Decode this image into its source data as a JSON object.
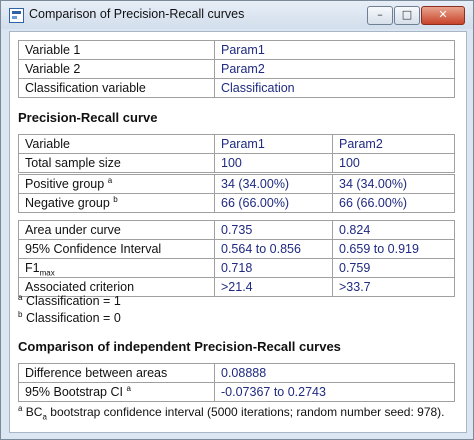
{
  "window": {
    "title": "Comparison of Precision-Recall curves",
    "minimize_glyph": "–",
    "maximize_glyph": "□",
    "close_glyph": "✕"
  },
  "variables": {
    "rows": [
      {
        "label": "Variable 1",
        "value": "Param1"
      },
      {
        "label": "Variable 2",
        "value": "Param2"
      },
      {
        "label": "Classification variable",
        "value": "Classification"
      }
    ]
  },
  "pr_curve": {
    "heading": "Precision-Recall curve",
    "header": {
      "label": "Variable",
      "col1": "Param1",
      "col2": "Param2"
    },
    "sample": {
      "label": "Total sample size",
      "col1": "100",
      "col2": "100"
    },
    "positive": {
      "label": "Positive group",
      "sup": "a",
      "col1": "34 (34.00%)",
      "col2": "34 (34.00%)"
    },
    "negative": {
      "label": "Negative group",
      "sup": "b",
      "col1": "66 (66.00%)",
      "col2": "66 (66.00%)"
    },
    "auc": {
      "label": "Area under curve",
      "col1": "0.735",
      "col2": "0.824"
    },
    "ci": {
      "label": "95% Confidence Interval",
      "col1": "0.564 to 0.856",
      "col2": "0.659 to 0.919"
    },
    "f1": {
      "label": "F1",
      "sub": "max",
      "col1": "0.718",
      "col2": "0.759"
    },
    "criterion": {
      "label": "Associated criterion",
      "col1": ">21.4",
      "col2": ">33.7"
    }
  },
  "footnotes": {
    "a": {
      "mark": "a",
      "text": "Classification = 1"
    },
    "b": {
      "mark": "b",
      "text": "Classification = 0"
    }
  },
  "comparison": {
    "heading": "Comparison of independent Precision-Recall curves",
    "diff": {
      "label": "Difference between areas",
      "value": "0.08888"
    },
    "bootstrap": {
      "label": "95% Bootstrap CI",
      "sup": "a",
      "value": "-0.07367 to 0.2743"
    },
    "footnote": {
      "mark": "a",
      "bc": "BC",
      "bc_sub": "a",
      "text": "bootstrap confidence interval (5000 iterations; random number seed: 978)."
    }
  }
}
